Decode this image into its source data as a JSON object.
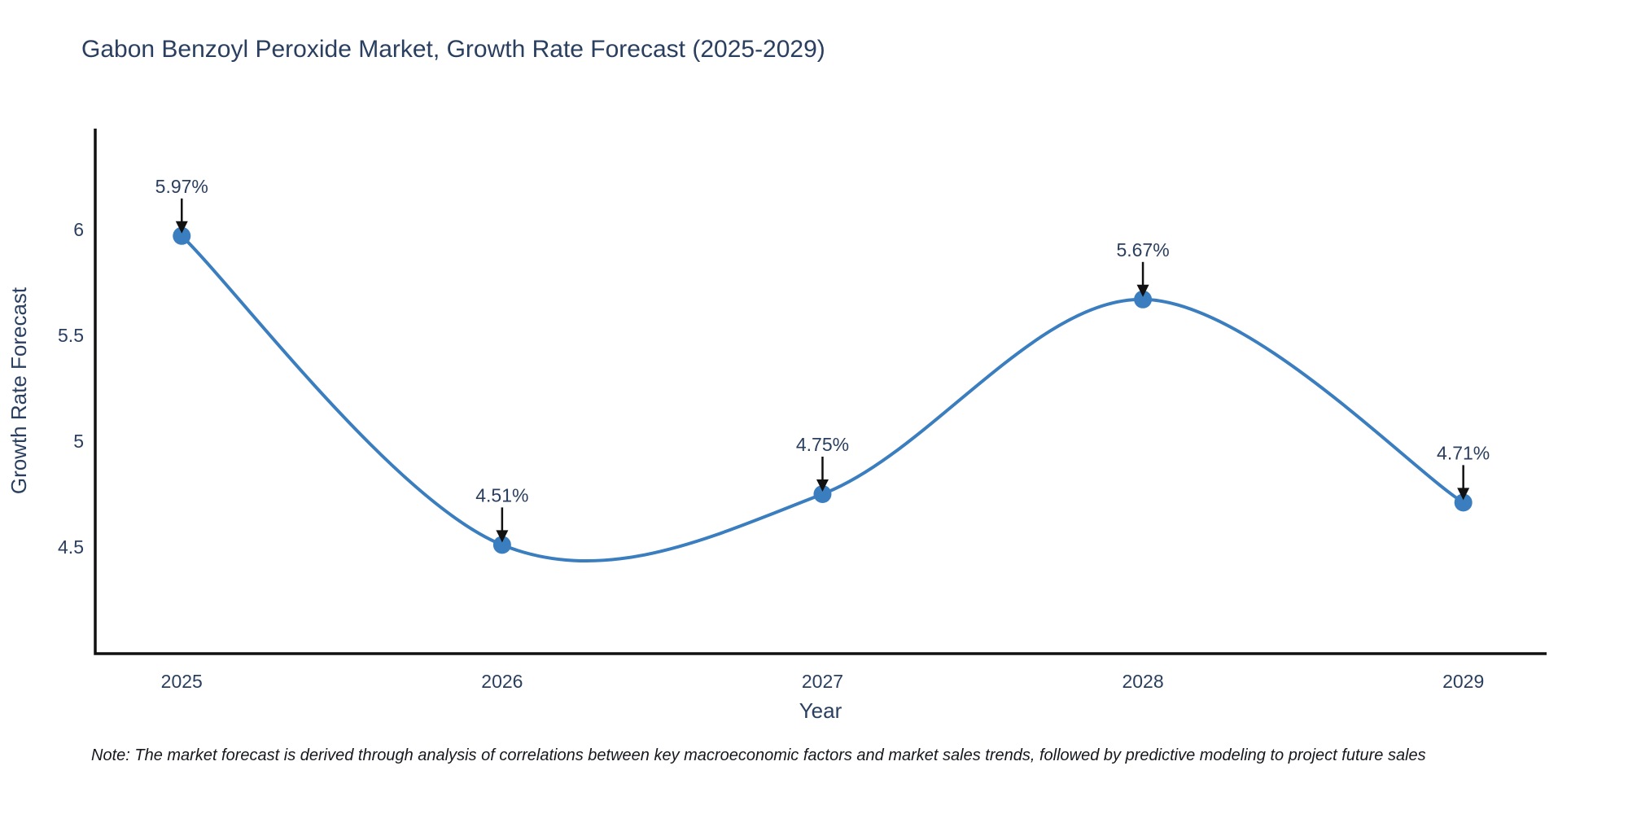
{
  "chart_data": {
    "type": "line",
    "title": "Gabon Benzoyl Peroxide Market, Growth Rate Forecast (2025-2029)",
    "xlabel": "Year",
    "ylabel": "Growth Rate Forecast",
    "x": [
      2025,
      2026,
      2027,
      2028,
      2029
    ],
    "series": [
      {
        "name": "Growth Rate Forecast",
        "values": [
          5.97,
          4.51,
          4.75,
          5.67,
          4.71
        ]
      }
    ],
    "point_labels": [
      "5.97%",
      "4.51%",
      "4.75%",
      "5.67%",
      "4.71%"
    ],
    "xtick_labels": [
      "2025",
      "2026",
      "2027",
      "2028",
      "2029"
    ],
    "ytick_values": [
      4.5,
      5,
      5.5,
      6
    ],
    "ytick_labels": [
      "4.5",
      "5",
      "5.5",
      "6"
    ],
    "xlim": [
      2024.73,
      2029.26
    ],
    "ylim": [
      3.996,
      6.477
    ],
    "grid": false,
    "legend_position": "none",
    "line_shape": "spline",
    "colors": {
      "line": "#3a7ebf",
      "marker": "#3a7ebf",
      "arrow": "#111111",
      "axis": "#111111",
      "text": "#2a3f5f"
    }
  },
  "note": "Note: The market forecast is derived through analysis of correlations between key macroeconomic factors and market sales trends, followed by predictive modeling to project future sales"
}
